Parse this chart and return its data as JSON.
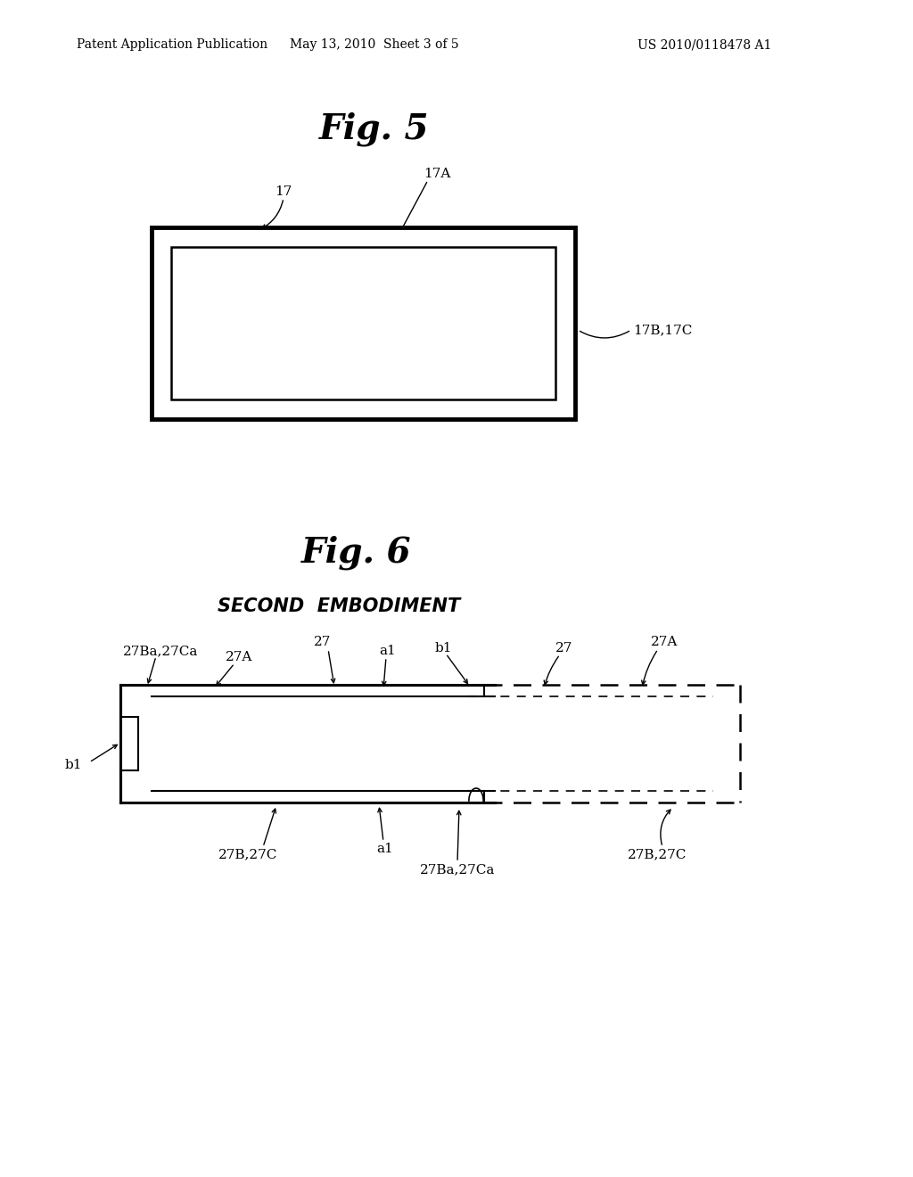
{
  "bg_color": "#ffffff",
  "header_text": "Patent Application Publication",
  "header_date": "May 13, 2010  Sheet 3 of 5",
  "header_patent": "US 2010/0118478 A1",
  "fig5_title": "Fig. 5",
  "fig6_title": "Fig. 6",
  "fig6_subtitle": "SECOND  EMBODIMENT"
}
